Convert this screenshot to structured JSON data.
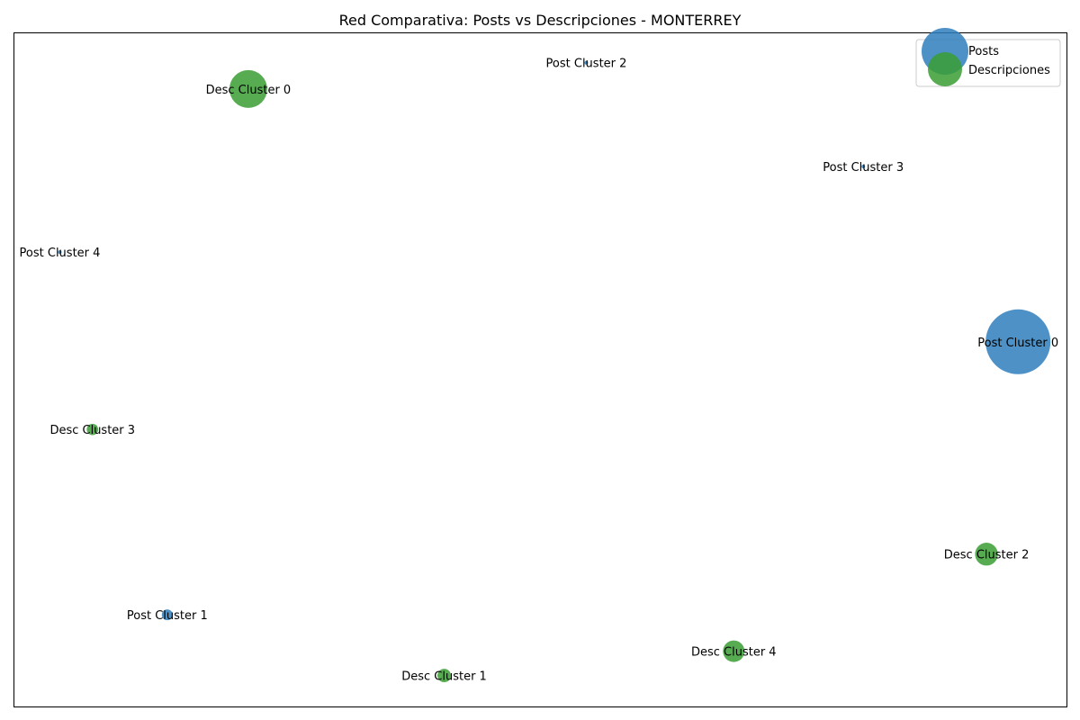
{
  "chart_data": {
    "type": "scatter",
    "title": "Red Comparativa: Posts vs Descripciones - MONTERREY",
    "xlabel": "",
    "ylabel": "",
    "xlim": [
      0,
      100
    ],
    "ylim": [
      0,
      100
    ],
    "grid": false,
    "legend_placement": "top-right",
    "series": [
      {
        "name": "Posts",
        "color": "#2f7ebc",
        "points": [
          {
            "label": "Post Cluster 0",
            "x": 95.4,
            "y": 54.1,
            "size": 100
          },
          {
            "label": "Post Cluster 1",
            "x": 14.6,
            "y": 13.6,
            "size": 2.8
          },
          {
            "label": "Post Cluster 2",
            "x": 54.4,
            "y": 95.5,
            "size": 0.1
          },
          {
            "label": "Post Cluster 3",
            "x": 80.7,
            "y": 80.1,
            "size": 0.1
          },
          {
            "label": "Post Cluster 4",
            "x": 4.4,
            "y": 67.4,
            "size": 0.1
          }
        ]
      },
      {
        "name": "Descripciones",
        "color": "#3a9e34",
        "points": [
          {
            "label": "Desc Cluster 0",
            "x": 22.3,
            "y": 91.6,
            "size": 34
          },
          {
            "label": "Desc Cluster 1",
            "x": 40.9,
            "y": 4.6,
            "size": 4.3
          },
          {
            "label": "Desc Cluster 2",
            "x": 92.4,
            "y": 22.6,
            "size": 12.4
          },
          {
            "label": "Desc Cluster 3",
            "x": 7.5,
            "y": 41.1,
            "size": 3.1
          },
          {
            "label": "Desc Cluster 4",
            "x": 68.4,
            "y": 8.2,
            "size": 11.1
          }
        ]
      }
    ]
  }
}
